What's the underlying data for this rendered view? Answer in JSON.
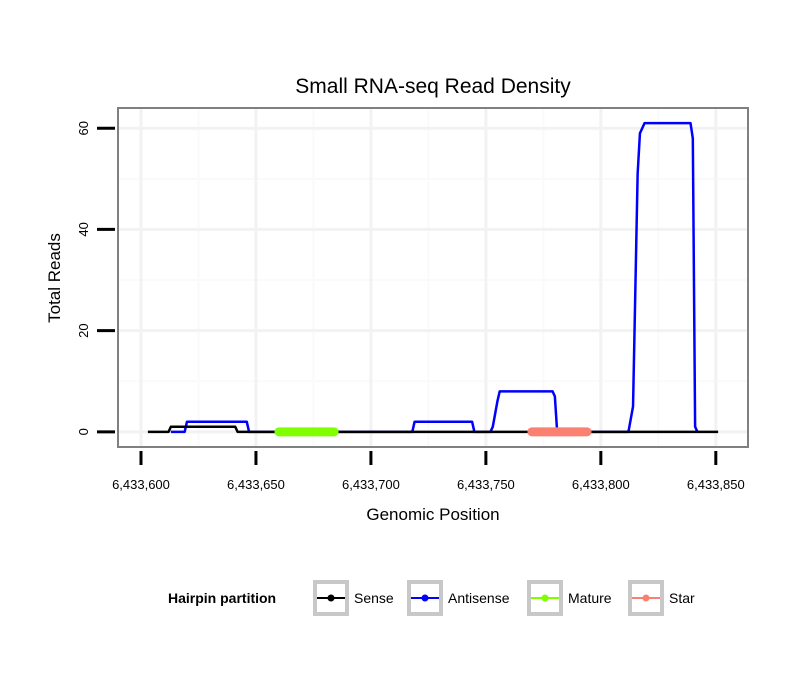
{
  "chart_data": {
    "type": "line",
    "title": "Small RNA-seq Read Density",
    "xlabel": "Genomic Position",
    "ylabel": "Total Reads",
    "xlim": [
      6433590,
      6433864
    ],
    "ylim": [
      -3,
      64
    ],
    "x_ticks": [
      6433600,
      6433650,
      6433700,
      6433750,
      6433800,
      6433850
    ],
    "x_tick_labels": [
      "6,433,600",
      "6,433,650",
      "6,433,700",
      "6,433,750",
      "6,433,800",
      "6,433,850"
    ],
    "y_ticks": [
      0,
      20,
      40,
      60
    ],
    "y_tick_labels": [
      "0",
      "20",
      "40",
      "60"
    ],
    "grid": true,
    "legend": {
      "title": "Hairpin partition",
      "placement": "bottom"
    },
    "series": [
      {
        "name": "Sense",
        "color": "#000000",
        "kind": "line",
        "x": [
          6433603,
          6433612,
          6433613,
          6433641,
          6433642,
          6433851
        ],
        "y": [
          0,
          0,
          1,
          1,
          0,
          0
        ]
      },
      {
        "name": "Antisense",
        "color": "#0000ff",
        "kind": "line",
        "x": [
          6433613,
          6433619,
          6433620,
          6433646,
          6433647,
          6433718,
          6433719,
          6433744,
          6433745,
          6433752,
          6433753,
          6433755,
          6433756,
          6433779,
          6433780,
          6433781,
          6433812,
          6433814,
          6433816,
          6433817,
          6433819,
          6433839,
          6433840,
          6433841,
          6433842
        ],
        "y": [
          0,
          0,
          2,
          2,
          0,
          0,
          2,
          2,
          0,
          0,
          1,
          6,
          8,
          8,
          7,
          0,
          0,
          5,
          51,
          59,
          61,
          61,
          58,
          1,
          0
        ]
      },
      {
        "name": "Mature",
        "color": "#7fff00",
        "kind": "segment",
        "x": [
          6433660,
          6433684
        ],
        "y": [
          0,
          0
        ]
      },
      {
        "name": "Star",
        "color": "#fa8072",
        "kind": "segment",
        "x": [
          6433770,
          6433794
        ],
        "y": [
          0,
          0
        ]
      }
    ]
  }
}
